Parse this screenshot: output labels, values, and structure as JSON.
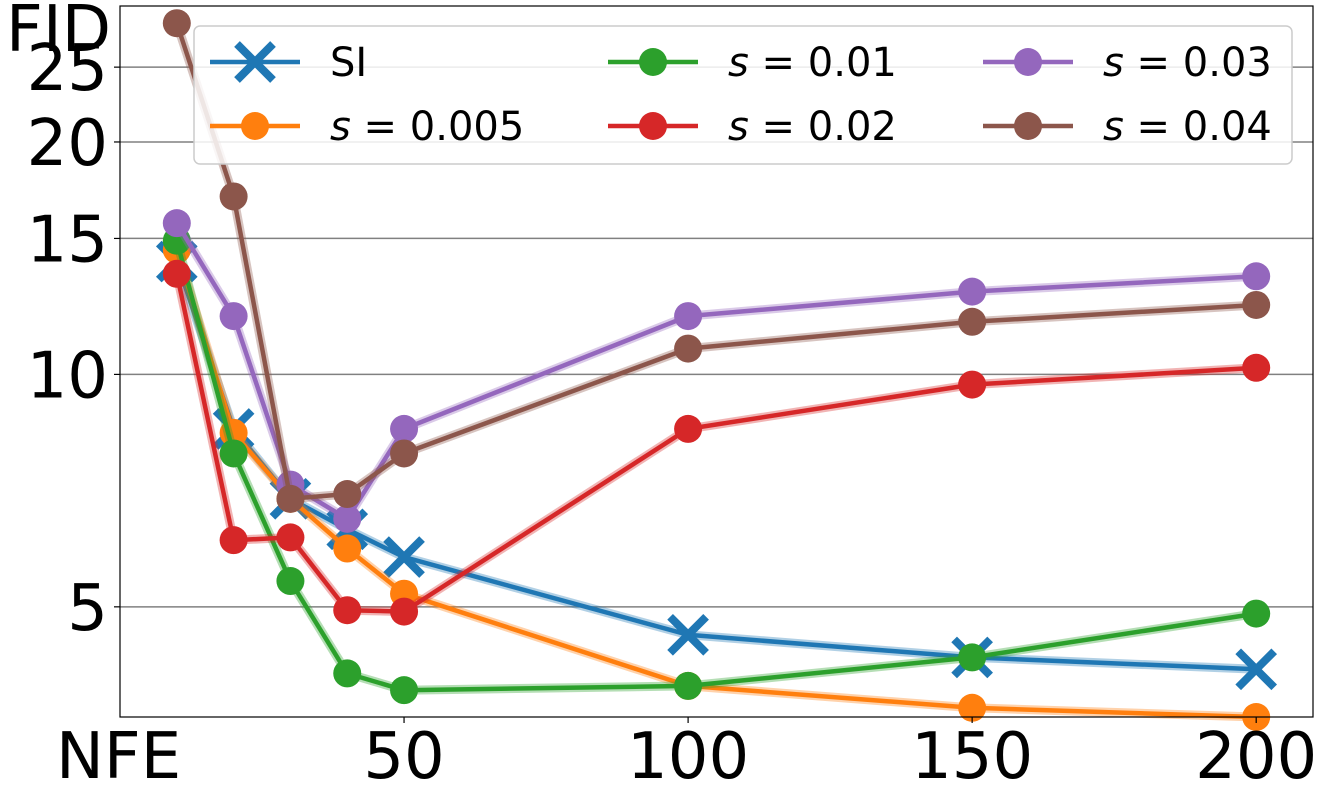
{
  "chart_data": {
    "type": "line",
    "ylabel": "FID",
    "xlabel": "NFE",
    "xlim": [
      0,
      210
    ],
    "xticks": [
      50,
      100,
      150,
      200
    ],
    "xtick_labels": [
      "50",
      "100",
      "150",
      "200"
    ],
    "ylim": [
      3.6,
      30
    ],
    "yscale": "log",
    "yticks": [
      5,
      10,
      15,
      20,
      25
    ],
    "ytick_labels": [
      "5",
      "10",
      "15",
      "20",
      "25"
    ],
    "grid": "horizontal",
    "legend_position": "top-right",
    "legend_columns": 3,
    "x": [
      10,
      20,
      30,
      40,
      50,
      100,
      150,
      200
    ],
    "series": [
      {
        "name": "SI",
        "label_var": "",
        "label_val": "SI",
        "color": "#1f77b4",
        "marker": "x",
        "values": [
          14.0,
          8.5,
          6.9,
          6.3,
          5.8,
          4.6,
          4.3,
          4.15
        ]
      },
      {
        "name": "s = 0.005",
        "label_var": "s",
        "label_val": " = 0.005",
        "color": "#ff7f0e",
        "marker": "o",
        "values": [
          14.5,
          8.4,
          6.9,
          5.95,
          5.2,
          3.95,
          3.7,
          3.6
        ]
      },
      {
        "name": "s = 0.01",
        "label_var": "s",
        "label_val": " = 0.01",
        "color": "#2ca02c",
        "marker": "o",
        "values": [
          14.9,
          7.9,
          5.4,
          4.1,
          3.9,
          3.95,
          4.3,
          4.9
        ]
      },
      {
        "name": "s = 0.02",
        "label_var": "s",
        "label_val": " = 0.02",
        "color": "#d62728",
        "marker": "o",
        "values": [
          13.5,
          6.1,
          6.15,
          4.95,
          4.93,
          8.5,
          9.7,
          10.2
        ]
      },
      {
        "name": "s = 0.03",
        "label_var": "s",
        "label_val": " = 0.03",
        "color": "#9467bd",
        "marker": "o",
        "values": [
          15.7,
          11.9,
          7.2,
          6.5,
          8.5,
          11.9,
          12.8,
          13.4
        ]
      },
      {
        "name": "s = 0.04",
        "label_var": "s",
        "label_val": " = 0.04",
        "color": "#8c564b",
        "marker": "o",
        "values": [
          28.5,
          17.0,
          6.9,
          7.0,
          7.9,
          10.8,
          11.7,
          12.3
        ]
      }
    ]
  }
}
